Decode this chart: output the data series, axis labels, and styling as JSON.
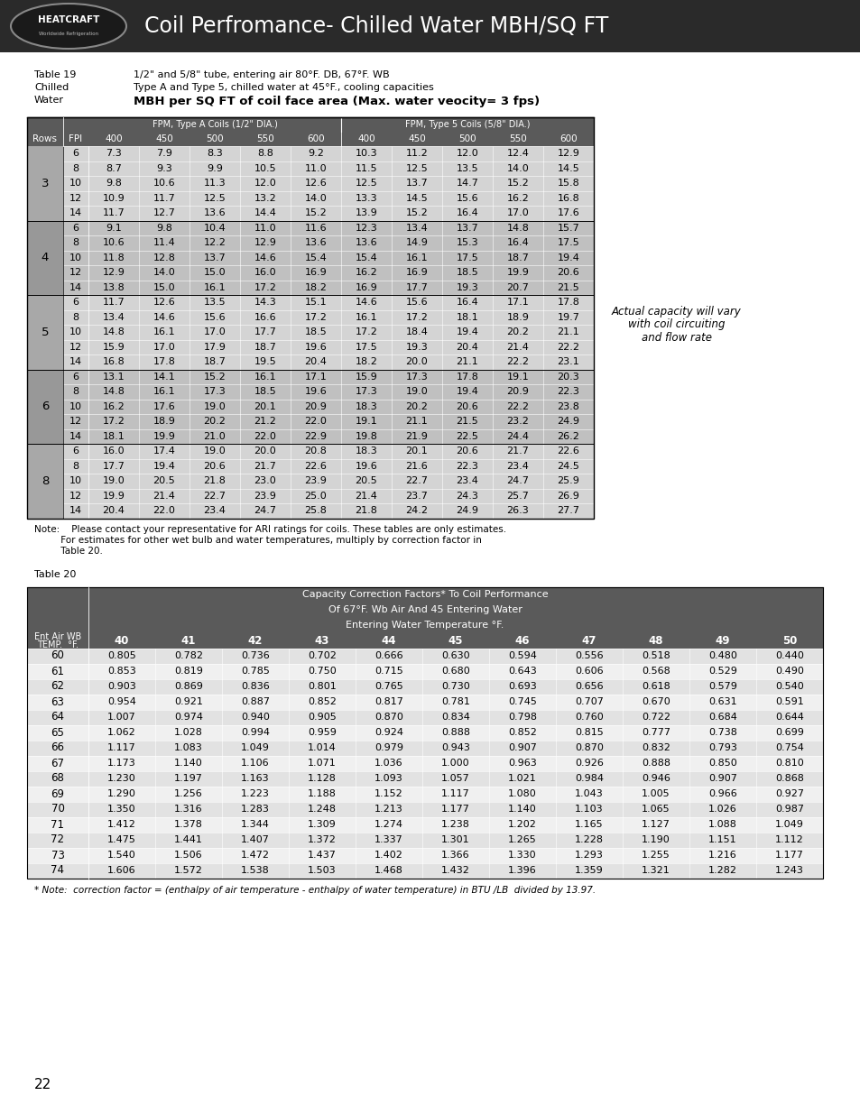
{
  "title": "Coil Perfromance- Chilled Water MBH/SQ FT",
  "header_bg": "#2a2a2a",
  "header_text_color": "#ffffff",
  "table1_title_lines": [
    "1/2\" and 5/8\" tube, entering air 80°F. DB, 67°F. WB",
    "Type A and Type 5, chilled water at 45°F., cooling capacities",
    "MBH per SQ FT of coil face area (Max. water veocity= 3 fps)"
  ],
  "table1_label": "Table 19",
  "table1_label2": "Chilled",
  "table1_label3": "Water",
  "table1_group_headers": [
    "FPM, Type A Coils (1/2\" DIA.)",
    "FPM, Type 5 Coils (5/8\" DIA.)"
  ],
  "table1_col_headers": [
    "Rows",
    "FPI",
    "400",
    "450",
    "500",
    "550",
    "600",
    "400",
    "450",
    "500",
    "550",
    "600"
  ],
  "table1_data": [
    [
      3,
      6,
      7.3,
      7.9,
      8.3,
      8.8,
      9.2,
      10.3,
      11.2,
      12.0,
      12.4,
      12.9
    ],
    [
      3,
      8,
      8.7,
      9.3,
      9.9,
      10.5,
      11.0,
      11.5,
      12.5,
      13.5,
      14.0,
      14.5
    ],
    [
      3,
      10,
      9.8,
      10.6,
      11.3,
      12.0,
      12.6,
      12.5,
      13.7,
      14.7,
      15.2,
      15.8
    ],
    [
      3,
      12,
      10.9,
      11.7,
      12.5,
      13.2,
      14.0,
      13.3,
      14.5,
      15.6,
      16.2,
      16.8
    ],
    [
      3,
      14,
      11.7,
      12.7,
      13.6,
      14.4,
      15.2,
      13.9,
      15.2,
      16.4,
      17.0,
      17.6
    ],
    [
      4,
      6,
      9.1,
      9.8,
      10.4,
      11.0,
      11.6,
      12.3,
      13.4,
      13.7,
      14.8,
      15.7
    ],
    [
      4,
      8,
      10.6,
      11.4,
      12.2,
      12.9,
      13.6,
      13.6,
      14.9,
      15.3,
      16.4,
      17.5
    ],
    [
      4,
      10,
      11.8,
      12.8,
      13.7,
      14.6,
      15.4,
      15.4,
      16.1,
      17.5,
      18.7,
      19.4
    ],
    [
      4,
      12,
      12.9,
      14.0,
      15.0,
      16.0,
      16.9,
      16.2,
      16.9,
      18.5,
      19.9,
      20.6
    ],
    [
      4,
      14,
      13.8,
      15.0,
      16.1,
      17.2,
      18.2,
      16.9,
      17.7,
      19.3,
      20.7,
      21.5
    ],
    [
      5,
      6,
      11.7,
      12.6,
      13.5,
      14.3,
      15.1,
      14.6,
      15.6,
      16.4,
      17.1,
      17.8
    ],
    [
      5,
      8,
      13.4,
      14.6,
      15.6,
      16.6,
      17.2,
      16.1,
      17.2,
      18.1,
      18.9,
      19.7
    ],
    [
      5,
      10,
      14.8,
      16.1,
      17.0,
      17.7,
      18.5,
      17.2,
      18.4,
      19.4,
      20.2,
      21.1
    ],
    [
      5,
      12,
      15.9,
      17.0,
      17.9,
      18.7,
      19.6,
      17.5,
      19.3,
      20.4,
      21.4,
      22.2
    ],
    [
      5,
      14,
      16.8,
      17.8,
      18.7,
      19.5,
      20.4,
      18.2,
      20.0,
      21.1,
      22.2,
      23.1
    ],
    [
      6,
      6,
      13.1,
      14.1,
      15.2,
      16.1,
      17.1,
      15.9,
      17.3,
      17.8,
      19.1,
      20.3
    ],
    [
      6,
      8,
      14.8,
      16.1,
      17.3,
      18.5,
      19.6,
      17.3,
      19.0,
      19.4,
      20.9,
      22.3
    ],
    [
      6,
      10,
      16.2,
      17.6,
      19.0,
      20.1,
      20.9,
      18.3,
      20.2,
      20.6,
      22.2,
      23.8
    ],
    [
      6,
      12,
      17.2,
      18.9,
      20.2,
      21.2,
      22.0,
      19.1,
      21.1,
      21.5,
      23.2,
      24.9
    ],
    [
      6,
      14,
      18.1,
      19.9,
      21.0,
      22.0,
      22.9,
      19.8,
      21.9,
      22.5,
      24.4,
      26.2
    ],
    [
      8,
      6,
      16.0,
      17.4,
      19.0,
      20.0,
      20.8,
      18.3,
      20.1,
      20.6,
      21.7,
      22.6
    ],
    [
      8,
      8,
      17.7,
      19.4,
      20.6,
      21.7,
      22.6,
      19.6,
      21.6,
      22.3,
      23.4,
      24.5
    ],
    [
      8,
      10,
      19.0,
      20.5,
      21.8,
      23.0,
      23.9,
      20.5,
      22.7,
      23.4,
      24.7,
      25.9
    ],
    [
      8,
      12,
      19.9,
      21.4,
      22.7,
      23.9,
      25.0,
      21.4,
      23.7,
      24.3,
      25.7,
      26.9
    ],
    [
      8,
      14,
      20.4,
      22.0,
      23.4,
      24.7,
      25.8,
      21.8,
      24.2,
      24.9,
      26.3,
      27.7
    ]
  ],
  "side_note": "Actual capacity will vary\nwith coil circuiting\nand flow rate",
  "note_line1": "Note:    Please contact your representative for ARI ratings for coils. These tables are only estimates.",
  "note_line2": "         For estimates for other wet bulb and water temperatures, multiply by correction factor in",
  "note_line3": "         Table 20.",
  "table2_label": "Table 20",
  "table2_title_lines": [
    "Capacity Correction Factors* To Coil Performance",
    "Of 67°F. Wb Air And 45 Entering Water",
    "Entering Water Temperature °F."
  ],
  "table2_col_header1": "Ent Air WB",
  "table2_col_header2": "TEMP.  °F.",
  "table2_cols": [
    "40",
    "41",
    "42",
    "43",
    "44",
    "45",
    "46",
    "47",
    "48",
    "49",
    "50"
  ],
  "table2_data": [
    [
      60,
      0.805,
      0.782,
      0.736,
      0.702,
      0.666,
      0.63,
      0.594,
      0.556,
      0.518,
      0.48,
      0.44
    ],
    [
      61,
      0.853,
      0.819,
      0.785,
      0.75,
      0.715,
      0.68,
      0.643,
      0.606,
      0.568,
      0.529,
      0.49
    ],
    [
      62,
      0.903,
      0.869,
      0.836,
      0.801,
      0.765,
      0.73,
      0.693,
      0.656,
      0.618,
      0.579,
      0.54
    ],
    [
      63,
      0.954,
      0.921,
      0.887,
      0.852,
      0.817,
      0.781,
      0.745,
      0.707,
      0.67,
      0.631,
      0.591
    ],
    [
      64,
      1.007,
      0.974,
      0.94,
      0.905,
      0.87,
      0.834,
      0.798,
      0.76,
      0.722,
      0.684,
      0.644
    ],
    [
      65,
      1.062,
      1.028,
      0.994,
      0.959,
      0.924,
      0.888,
      0.852,
      0.815,
      0.777,
      0.738,
      0.699
    ],
    [
      66,
      1.117,
      1.083,
      1.049,
      1.014,
      0.979,
      0.943,
      0.907,
      0.87,
      0.832,
      0.793,
      0.754
    ],
    [
      67,
      1.173,
      1.14,
      1.106,
      1.071,
      1.036,
      1.0,
      0.963,
      0.926,
      0.888,
      0.85,
      0.81
    ],
    [
      68,
      1.23,
      1.197,
      1.163,
      1.128,
      1.093,
      1.057,
      1.021,
      0.984,
      0.946,
      0.907,
      0.868
    ],
    [
      69,
      1.29,
      1.256,
      1.223,
      1.188,
      1.152,
      1.117,
      1.08,
      1.043,
      1.005,
      0.966,
      0.927
    ],
    [
      70,
      1.35,
      1.316,
      1.283,
      1.248,
      1.213,
      1.177,
      1.14,
      1.103,
      1.065,
      1.026,
      0.987
    ],
    [
      71,
      1.412,
      1.378,
      1.344,
      1.309,
      1.274,
      1.238,
      1.202,
      1.165,
      1.127,
      1.088,
      1.049
    ],
    [
      72,
      1.475,
      1.441,
      1.407,
      1.372,
      1.337,
      1.301,
      1.265,
      1.228,
      1.19,
      1.151,
      1.112
    ],
    [
      73,
      1.54,
      1.506,
      1.472,
      1.437,
      1.402,
      1.366,
      1.33,
      1.293,
      1.255,
      1.216,
      1.177
    ],
    [
      74,
      1.606,
      1.572,
      1.538,
      1.503,
      1.468,
      1.432,
      1.396,
      1.359,
      1.321,
      1.282,
      1.243
    ]
  ],
  "table2_footnote": "* Note:  correction factor = (enthalpy of air temperature - enthalpy of water temperature) in BTU /LB  divided by 13.97.",
  "page_number": "22"
}
